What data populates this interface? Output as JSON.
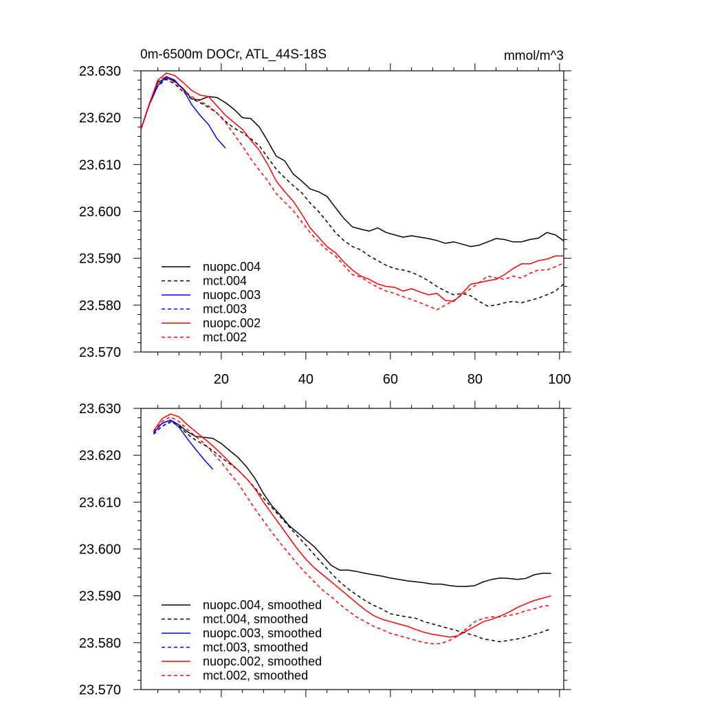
{
  "chart_data": [
    {
      "type": "line",
      "title_left": "0m-6500m DOCr, ATL_44S-18S",
      "title_right": "mmol/m^3",
      "xlim": [
        1,
        101
      ],
      "ylim": [
        23.57,
        23.63
      ],
      "x_ticks": [
        20,
        40,
        60,
        80,
        100
      ],
      "x_tick_labels": [
        "20",
        "40",
        "60",
        "80",
        "100"
      ],
      "y_ticks": [
        23.57,
        23.58,
        23.59,
        23.6,
        23.61,
        23.62,
        23.63
      ],
      "y_tick_labels": [
        "23.570",
        "23.580",
        "23.590",
        "23.600",
        "23.610",
        "23.620",
        "23.630"
      ],
      "legend_position": "bottom-left",
      "series": [
        {
          "name": "nuopc.004",
          "color": "#000000",
          "dash": "solid",
          "x": [
            1,
            3,
            5,
            7,
            9,
            11,
            13,
            15,
            17,
            19,
            21,
            23,
            25,
            27,
            29,
            31,
            33,
            35,
            37,
            39,
            41,
            43,
            45,
            47,
            49,
            51,
            53,
            55,
            57,
            59,
            61,
            63,
            65,
            67,
            69,
            71,
            73,
            75,
            77,
            79,
            81,
            83,
            85,
            87,
            89,
            91,
            93,
            95,
            97,
            99,
            101
          ],
          "y": [
            23.6175,
            23.623,
            23.6275,
            23.6285,
            23.6278,
            23.6262,
            23.624,
            23.6238,
            23.6245,
            23.6243,
            23.6232,
            23.6218,
            23.62,
            23.6198,
            23.618,
            23.615,
            23.6118,
            23.6108,
            23.608,
            23.6065,
            23.6048,
            23.6042,
            23.6032,
            23.6008,
            23.5985,
            23.5967,
            23.5962,
            23.5958,
            23.5965,
            23.5955,
            23.595,
            23.5945,
            23.5948,
            23.5945,
            23.5942,
            23.5938,
            23.5932,
            23.5935,
            23.593,
            23.5925,
            23.5928,
            23.5935,
            23.5942,
            23.594,
            23.5935,
            23.5935,
            23.594,
            23.5943,
            23.5955,
            23.595,
            23.5937
          ]
        },
        {
          "name": "mct.004",
          "color": "#000000",
          "dash": "dashed",
          "x": [
            1,
            3,
            5,
            7,
            9,
            11,
            13,
            15,
            17,
            19,
            21,
            23,
            25,
            27,
            29,
            31,
            33,
            35,
            37,
            39,
            41,
            43,
            45,
            47,
            49,
            51,
            53,
            55,
            57,
            59,
            61,
            63,
            65,
            67,
            69,
            71,
            73,
            75,
            77,
            79,
            81,
            83,
            85,
            87,
            89,
            91,
            93,
            95,
            97,
            99,
            101
          ],
          "y": [
            23.6175,
            23.6228,
            23.6268,
            23.6282,
            23.6272,
            23.6255,
            23.624,
            23.6232,
            23.6222,
            23.621,
            23.6192,
            23.6178,
            23.6168,
            23.6155,
            23.614,
            23.6115,
            23.609,
            23.6072,
            23.6055,
            23.604,
            23.6018,
            23.6,
            23.5978,
            23.5955,
            23.5938,
            23.5925,
            23.5918,
            23.5905,
            23.5895,
            23.5885,
            23.5878,
            23.5875,
            23.587,
            23.5862,
            23.5852,
            23.584,
            23.583,
            23.5822,
            23.5825,
            23.582,
            23.5808,
            23.5798,
            23.58,
            23.5805,
            23.5808,
            23.5805,
            23.581,
            23.5815,
            23.5822,
            23.583,
            23.5845
          ]
        },
        {
          "name": "nuopc.003",
          "color": "#0000ff",
          "dash": "solid",
          "x": [
            1,
            3,
            5,
            7,
            9,
            11,
            13,
            15,
            17,
            19,
            21
          ],
          "y": [
            23.6175,
            23.6228,
            23.6268,
            23.6288,
            23.628,
            23.626,
            23.6228,
            23.6205,
            23.6185,
            23.6155,
            23.6135
          ]
        },
        {
          "name": "mct.003",
          "color": "#0000ff",
          "dash": "dashed",
          "x": [
            1,
            3,
            5,
            7,
            9
          ],
          "y": [
            23.6175,
            23.6228,
            23.627,
            23.6285,
            23.6278
          ]
        },
        {
          "name": "nuopc.002",
          "color": "#ff0000",
          "dash": "solid",
          "x": [
            1,
            3,
            5,
            7,
            9,
            11,
            13,
            15,
            17,
            19,
            21,
            23,
            25,
            27,
            29,
            31,
            33,
            35,
            37,
            39,
            41,
            43,
            45,
            47,
            49,
            51,
            53,
            55,
            57,
            59,
            61,
            63,
            65,
            67,
            69,
            71,
            73,
            75,
            77,
            79,
            81,
            83,
            85,
            87,
            89,
            91,
            93,
            95,
            97,
            99,
            101
          ],
          "y": [
            23.6175,
            23.623,
            23.628,
            23.6295,
            23.629,
            23.6275,
            23.6258,
            23.6248,
            23.6245,
            23.6225,
            23.6205,
            23.619,
            23.6175,
            23.6152,
            23.613,
            23.61,
            23.6065,
            23.6042,
            23.6022,
            23.5995,
            23.5965,
            23.5945,
            23.5925,
            23.5912,
            23.5892,
            23.5875,
            23.5862,
            23.5855,
            23.5845,
            23.584,
            23.5838,
            23.583,
            23.5835,
            23.5828,
            23.5822,
            23.5825,
            23.581,
            23.5808,
            23.5825,
            23.5845,
            23.5848,
            23.5852,
            23.5855,
            23.5865,
            23.5878,
            23.5888,
            23.5888,
            23.5895,
            23.5898,
            23.5905,
            23.5905
          ]
        },
        {
          "name": "mct.002",
          "color": "#ff0000",
          "dash": "dashed",
          "x": [
            1,
            3,
            5,
            7,
            9,
            11,
            13,
            15,
            17,
            19,
            21,
            23,
            25,
            27,
            29,
            31,
            33,
            35,
            37,
            39,
            41,
            43,
            45,
            47,
            49,
            51,
            53,
            55,
            57,
            59,
            61,
            63,
            65,
            67,
            69,
            71,
            73,
            75,
            77,
            79,
            81,
            83,
            85,
            87,
            89,
            91,
            93,
            95,
            97,
            99,
            101
          ],
          "y": [
            23.6175,
            23.6228,
            23.6278,
            23.6288,
            23.6275,
            23.626,
            23.6245,
            23.6235,
            23.6225,
            23.621,
            23.619,
            23.6165,
            23.614,
            23.6112,
            23.6088,
            23.6065,
            23.6038,
            23.602,
            23.6002,
            23.5978,
            23.5955,
            23.5935,
            23.5918,
            23.5905,
            23.5885,
            23.5865,
            23.586,
            23.5848,
            23.5838,
            23.583,
            23.5825,
            23.5818,
            23.5812,
            23.5805,
            23.5798,
            23.579,
            23.58,
            23.581,
            23.5822,
            23.5835,
            23.5848,
            23.5862,
            23.5858,
            23.5855,
            23.5862,
            23.5858,
            23.5868,
            23.5875,
            23.5875,
            23.5882,
            23.589
          ]
        }
      ]
    },
    {
      "type": "line",
      "xlim": [
        1,
        101
      ],
      "ylim": [
        23.57,
        23.63
      ],
      "x_ticks": [
        20,
        40,
        60,
        80,
        100
      ],
      "y_ticks": [
        23.57,
        23.58,
        23.59,
        23.6,
        23.61,
        23.62,
        23.63
      ],
      "y_tick_labels": [
        "23.570",
        "23.580",
        "23.590",
        "23.600",
        "23.610",
        "23.620",
        "23.630"
      ],
      "legend_position": "bottom-left",
      "series": [
        {
          "name": "nuopc.004, smoothed",
          "color": "#000000",
          "dash": "solid",
          "x": [
            4,
            6,
            8,
            10,
            12,
            14,
            16,
            18,
            20,
            22,
            24,
            26,
            28,
            30,
            32,
            34,
            36,
            38,
            40,
            42,
            44,
            46,
            48,
            50,
            52,
            54,
            56,
            58,
            60,
            62,
            64,
            66,
            68,
            70,
            72,
            74,
            76,
            78,
            80,
            82,
            84,
            86,
            88,
            90,
            92,
            94,
            96,
            98
          ],
          "y": [
            23.6248,
            23.6268,
            23.6275,
            23.6265,
            23.625,
            23.624,
            23.6238,
            23.6236,
            23.6225,
            23.621,
            23.6195,
            23.6175,
            23.615,
            23.6118,
            23.6092,
            23.6072,
            23.605,
            23.6035,
            23.602,
            23.6005,
            23.5985,
            23.5965,
            23.5955,
            23.5955,
            23.5952,
            23.5948,
            23.5945,
            23.5942,
            23.5938,
            23.5935,
            23.5932,
            23.593,
            23.5928,
            23.5925,
            23.5925,
            23.5922,
            23.592,
            23.592,
            23.5922,
            23.593,
            23.5935,
            23.5938,
            23.5937,
            23.5935,
            23.5937,
            23.5945,
            23.5948,
            23.5948
          ]
        },
        {
          "name": "mct.004, smoothed",
          "color": "#000000",
          "dash": "dashed",
          "x": [
            4,
            6,
            8,
            10,
            12,
            14,
            16,
            18,
            20,
            22,
            24,
            26,
            28,
            30,
            32,
            34,
            36,
            38,
            40,
            42,
            44,
            46,
            48,
            50,
            52,
            54,
            56,
            58,
            60,
            62,
            64,
            66,
            68,
            70,
            72,
            74,
            76,
            78,
            80,
            82,
            84,
            86,
            88,
            90,
            92,
            94,
            96,
            98
          ],
          "y": [
            23.6245,
            23.6262,
            23.6272,
            23.6262,
            23.6245,
            23.6232,
            23.6222,
            23.621,
            23.6195,
            23.6182,
            23.6168,
            23.615,
            23.613,
            23.6108,
            23.6088,
            23.6068,
            23.6048,
            23.6028,
            23.6008,
            23.5988,
            23.5968,
            23.5948,
            23.593,
            23.5915,
            23.5902,
            23.589,
            23.588,
            23.5872,
            23.5862,
            23.5858,
            23.5855,
            23.5852,
            23.5845,
            23.584,
            23.5835,
            23.583,
            23.5825,
            23.582,
            23.5815,
            23.5808,
            23.5805,
            23.5802,
            23.5805,
            23.5808,
            23.5812,
            23.5818,
            23.5823,
            23.583
          ]
        },
        {
          "name": "nuopc.003, smoothed",
          "color": "#0000ff",
          "dash": "solid",
          "x": [
            4,
            6,
            8,
            10,
            12,
            14,
            16,
            18
          ],
          "y": [
            23.6248,
            23.6268,
            23.6275,
            23.626,
            23.6235,
            23.6212,
            23.619,
            23.617
          ]
        },
        {
          "name": "mct.003, smoothed",
          "color": "#0000ff",
          "dash": "dashed",
          "x": [
            4,
            6,
            8
          ],
          "y": [
            23.6245,
            23.6262,
            23.627
          ]
        },
        {
          "name": "nuopc.002, smoothed",
          "color": "#ff0000",
          "dash": "solid",
          "x": [
            4,
            6,
            8,
            10,
            12,
            14,
            16,
            18,
            20,
            22,
            24,
            26,
            28,
            30,
            32,
            34,
            36,
            38,
            40,
            42,
            44,
            46,
            48,
            50,
            52,
            54,
            56,
            58,
            60,
            62,
            64,
            66,
            68,
            70,
            72,
            74,
            76,
            78,
            80,
            82,
            84,
            86,
            88,
            90,
            92,
            94,
            96,
            98
          ],
          "y": [
            23.6252,
            23.6278,
            23.6288,
            23.6282,
            23.6265,
            23.625,
            23.6235,
            23.622,
            23.6203,
            23.6185,
            23.6168,
            23.615,
            23.6128,
            23.61,
            23.6075,
            23.605,
            23.6025,
            23.6,
            23.5978,
            23.596,
            23.5945,
            23.593,
            23.5915,
            23.59,
            23.5885,
            23.587,
            23.5858,
            23.585,
            23.5845,
            23.584,
            23.5835,
            23.5828,
            23.5822,
            23.5818,
            23.5815,
            23.5812,
            23.5815,
            23.5825,
            23.5835,
            23.5845,
            23.585,
            23.5857,
            23.5865,
            23.5875,
            23.5883,
            23.589,
            23.5895,
            23.59
          ]
        },
        {
          "name": "mct.002, smoothed",
          "color": "#ff0000",
          "dash": "dashed",
          "x": [
            4,
            6,
            8,
            10,
            12,
            14,
            16,
            18,
            20,
            22,
            24,
            26,
            28,
            30,
            32,
            34,
            36,
            38,
            40,
            42,
            44,
            46,
            48,
            50,
            52,
            54,
            56,
            58,
            60,
            62,
            64,
            66,
            68,
            70,
            72,
            74,
            76,
            78,
            80,
            82,
            84,
            86,
            88,
            90,
            92,
            94,
            96,
            98
          ],
          "y": [
            23.625,
            23.6272,
            23.6282,
            23.6272,
            23.6255,
            23.624,
            23.6225,
            23.6205,
            23.6185,
            23.6162,
            23.614,
            23.6112,
            23.6085,
            23.606,
            23.6035,
            23.6012,
            23.599,
            23.5968,
            23.5948,
            23.593,
            23.5912,
            23.5898,
            23.5882,
            23.5868,
            23.5855,
            23.5845,
            23.5835,
            23.5828,
            23.582,
            23.5815,
            23.581,
            23.5805,
            23.58,
            23.5798,
            23.5798,
            23.5805,
            23.5815,
            23.583,
            23.5845,
            23.5852,
            23.5855,
            23.5855,
            23.5858,
            23.5862,
            23.5868,
            23.5872,
            23.5878,
            23.588
          ]
        }
      ]
    }
  ]
}
